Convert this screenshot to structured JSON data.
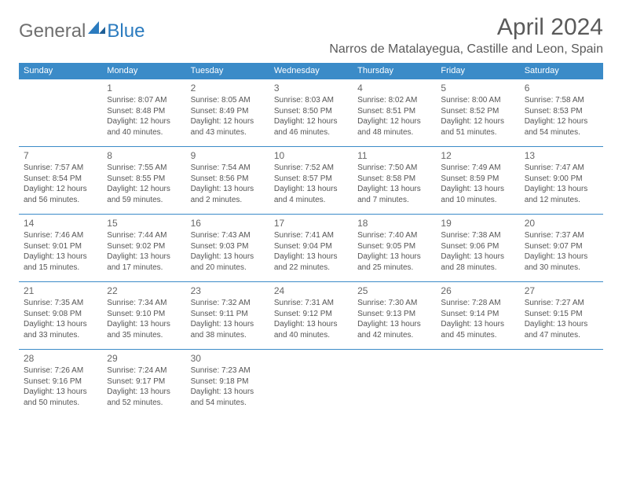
{
  "logo": {
    "text1": "General",
    "text2": "Blue"
  },
  "title": {
    "month": "April 2024",
    "location": "Narros de Matalayegua, Castille and Leon, Spain"
  },
  "colors": {
    "header_bg": "#3b8bc8",
    "header_text": "#ffffff",
    "cell_border": "#3b8bc8",
    "text": "#555555",
    "title_text": "#5a5a5a",
    "logo_gray": "#6f6f6f",
    "logo_blue": "#2b7bbf",
    "background": "#ffffff"
  },
  "weekdays": [
    "Sunday",
    "Monday",
    "Tuesday",
    "Wednesday",
    "Thursday",
    "Friday",
    "Saturday"
  ],
  "weeks": [
    [
      null,
      {
        "n": "1",
        "sr": "Sunrise: 8:07 AM",
        "ss": "Sunset: 8:48 PM",
        "d1": "Daylight: 12 hours",
        "d2": "and 40 minutes."
      },
      {
        "n": "2",
        "sr": "Sunrise: 8:05 AM",
        "ss": "Sunset: 8:49 PM",
        "d1": "Daylight: 12 hours",
        "d2": "and 43 minutes."
      },
      {
        "n": "3",
        "sr": "Sunrise: 8:03 AM",
        "ss": "Sunset: 8:50 PM",
        "d1": "Daylight: 12 hours",
        "d2": "and 46 minutes."
      },
      {
        "n": "4",
        "sr": "Sunrise: 8:02 AM",
        "ss": "Sunset: 8:51 PM",
        "d1": "Daylight: 12 hours",
        "d2": "and 48 minutes."
      },
      {
        "n": "5",
        "sr": "Sunrise: 8:00 AM",
        "ss": "Sunset: 8:52 PM",
        "d1": "Daylight: 12 hours",
        "d2": "and 51 minutes."
      },
      {
        "n": "6",
        "sr": "Sunrise: 7:58 AM",
        "ss": "Sunset: 8:53 PM",
        "d1": "Daylight: 12 hours",
        "d2": "and 54 minutes."
      }
    ],
    [
      {
        "n": "7",
        "sr": "Sunrise: 7:57 AM",
        "ss": "Sunset: 8:54 PM",
        "d1": "Daylight: 12 hours",
        "d2": "and 56 minutes."
      },
      {
        "n": "8",
        "sr": "Sunrise: 7:55 AM",
        "ss": "Sunset: 8:55 PM",
        "d1": "Daylight: 12 hours",
        "d2": "and 59 minutes."
      },
      {
        "n": "9",
        "sr": "Sunrise: 7:54 AM",
        "ss": "Sunset: 8:56 PM",
        "d1": "Daylight: 13 hours",
        "d2": "and 2 minutes."
      },
      {
        "n": "10",
        "sr": "Sunrise: 7:52 AM",
        "ss": "Sunset: 8:57 PM",
        "d1": "Daylight: 13 hours",
        "d2": "and 4 minutes."
      },
      {
        "n": "11",
        "sr": "Sunrise: 7:50 AM",
        "ss": "Sunset: 8:58 PM",
        "d1": "Daylight: 13 hours",
        "d2": "and 7 minutes."
      },
      {
        "n": "12",
        "sr": "Sunrise: 7:49 AM",
        "ss": "Sunset: 8:59 PM",
        "d1": "Daylight: 13 hours",
        "d2": "and 10 minutes."
      },
      {
        "n": "13",
        "sr": "Sunrise: 7:47 AM",
        "ss": "Sunset: 9:00 PM",
        "d1": "Daylight: 13 hours",
        "d2": "and 12 minutes."
      }
    ],
    [
      {
        "n": "14",
        "sr": "Sunrise: 7:46 AM",
        "ss": "Sunset: 9:01 PM",
        "d1": "Daylight: 13 hours",
        "d2": "and 15 minutes."
      },
      {
        "n": "15",
        "sr": "Sunrise: 7:44 AM",
        "ss": "Sunset: 9:02 PM",
        "d1": "Daylight: 13 hours",
        "d2": "and 17 minutes."
      },
      {
        "n": "16",
        "sr": "Sunrise: 7:43 AM",
        "ss": "Sunset: 9:03 PM",
        "d1": "Daylight: 13 hours",
        "d2": "and 20 minutes."
      },
      {
        "n": "17",
        "sr": "Sunrise: 7:41 AM",
        "ss": "Sunset: 9:04 PM",
        "d1": "Daylight: 13 hours",
        "d2": "and 22 minutes."
      },
      {
        "n": "18",
        "sr": "Sunrise: 7:40 AM",
        "ss": "Sunset: 9:05 PM",
        "d1": "Daylight: 13 hours",
        "d2": "and 25 minutes."
      },
      {
        "n": "19",
        "sr": "Sunrise: 7:38 AM",
        "ss": "Sunset: 9:06 PM",
        "d1": "Daylight: 13 hours",
        "d2": "and 28 minutes."
      },
      {
        "n": "20",
        "sr": "Sunrise: 7:37 AM",
        "ss": "Sunset: 9:07 PM",
        "d1": "Daylight: 13 hours",
        "d2": "and 30 minutes."
      }
    ],
    [
      {
        "n": "21",
        "sr": "Sunrise: 7:35 AM",
        "ss": "Sunset: 9:08 PM",
        "d1": "Daylight: 13 hours",
        "d2": "and 33 minutes."
      },
      {
        "n": "22",
        "sr": "Sunrise: 7:34 AM",
        "ss": "Sunset: 9:10 PM",
        "d1": "Daylight: 13 hours",
        "d2": "and 35 minutes."
      },
      {
        "n": "23",
        "sr": "Sunrise: 7:32 AM",
        "ss": "Sunset: 9:11 PM",
        "d1": "Daylight: 13 hours",
        "d2": "and 38 minutes."
      },
      {
        "n": "24",
        "sr": "Sunrise: 7:31 AM",
        "ss": "Sunset: 9:12 PM",
        "d1": "Daylight: 13 hours",
        "d2": "and 40 minutes."
      },
      {
        "n": "25",
        "sr": "Sunrise: 7:30 AM",
        "ss": "Sunset: 9:13 PM",
        "d1": "Daylight: 13 hours",
        "d2": "and 42 minutes."
      },
      {
        "n": "26",
        "sr": "Sunrise: 7:28 AM",
        "ss": "Sunset: 9:14 PM",
        "d1": "Daylight: 13 hours",
        "d2": "and 45 minutes."
      },
      {
        "n": "27",
        "sr": "Sunrise: 7:27 AM",
        "ss": "Sunset: 9:15 PM",
        "d1": "Daylight: 13 hours",
        "d2": "and 47 minutes."
      }
    ],
    [
      {
        "n": "28",
        "sr": "Sunrise: 7:26 AM",
        "ss": "Sunset: 9:16 PM",
        "d1": "Daylight: 13 hours",
        "d2": "and 50 minutes."
      },
      {
        "n": "29",
        "sr": "Sunrise: 7:24 AM",
        "ss": "Sunset: 9:17 PM",
        "d1": "Daylight: 13 hours",
        "d2": "and 52 minutes."
      },
      {
        "n": "30",
        "sr": "Sunrise: 7:23 AM",
        "ss": "Sunset: 9:18 PM",
        "d1": "Daylight: 13 hours",
        "d2": "and 54 minutes."
      },
      null,
      null,
      null,
      null
    ]
  ]
}
